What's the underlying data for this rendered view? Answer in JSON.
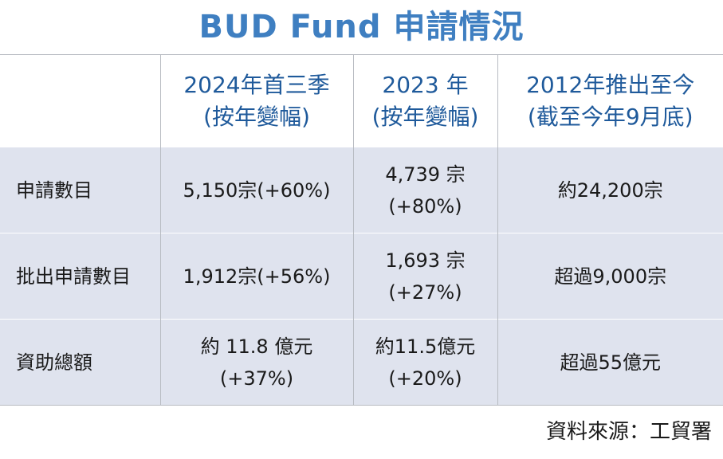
{
  "title": "BUD Fund 申請情況",
  "columns": [
    {
      "line1": "",
      "line2": ""
    },
    {
      "line1": "2024年首三季",
      "line2": "(按年變幅)"
    },
    {
      "line1": "2023 年",
      "line2": "(按年變幅)"
    },
    {
      "line1": "2012年推出至今",
      "line2": "(截至今年9月底)"
    }
  ],
  "rows": [
    {
      "label": "申請數目",
      "cells": [
        {
          "line1": "5,150宗(+60%)",
          "line2": ""
        },
        {
          "line1": "4,739 宗",
          "line2": "(+80%)"
        },
        {
          "line1": "約24,200宗",
          "line2": ""
        }
      ]
    },
    {
      "label": "批出申請數目",
      "cells": [
        {
          "line1": "1,912宗(+56%)",
          "line2": ""
        },
        {
          "line1": "1,693 宗",
          "line2": "(+27%)"
        },
        {
          "line1": "超過9,000宗",
          "line2": ""
        }
      ]
    },
    {
      "label": "資助總額",
      "cells": [
        {
          "line1": "約 11.8 億元",
          "line2": "(+37%)"
        },
        {
          "line1": "約11.5億元",
          "line2": "(+20%)"
        },
        {
          "line1": "超過55億元",
          "line2": ""
        }
      ]
    }
  ],
  "source": "資料來源：工貿署",
  "colors": {
    "title": "#3f7fc1",
    "header_text": "#1f5a9b",
    "row_bg": "#dfe3ee",
    "border": "#b8bcc2"
  }
}
